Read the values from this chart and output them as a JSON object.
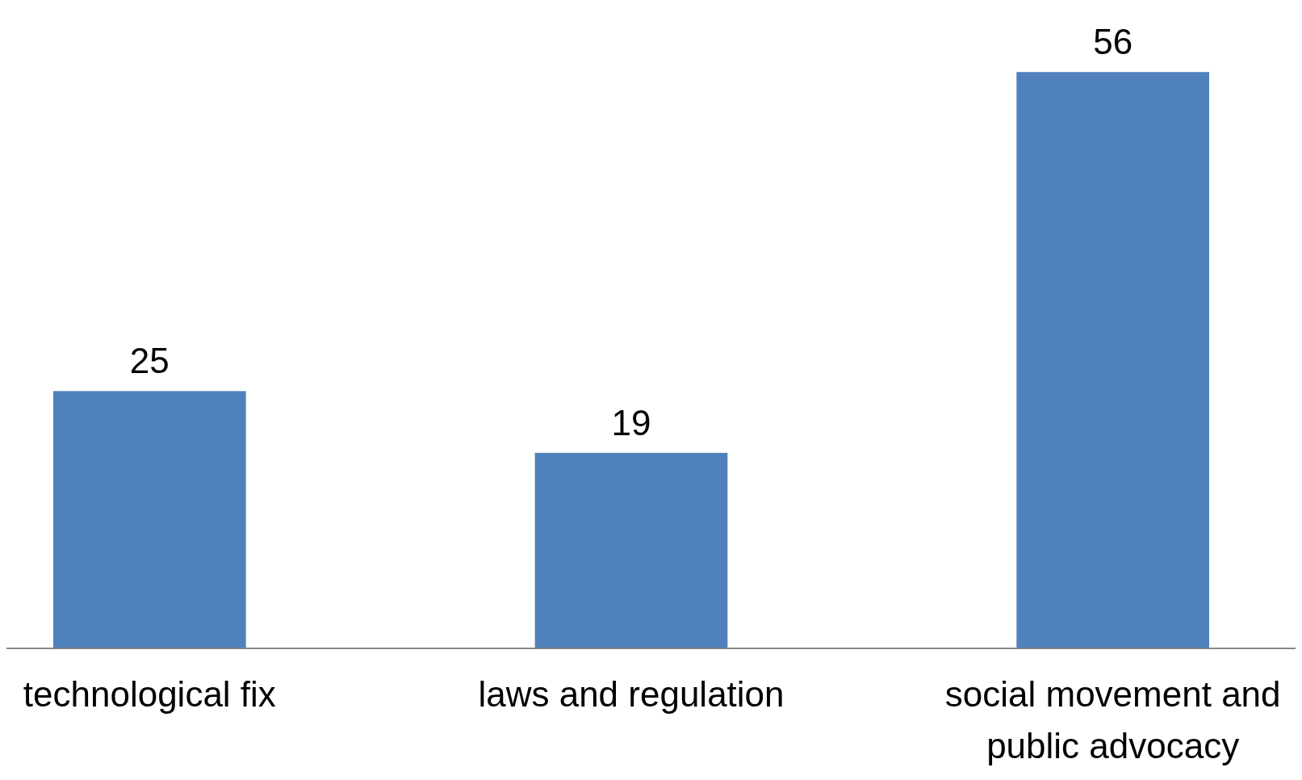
{
  "chart_data": {
    "type": "bar",
    "categories": [
      "technological fix",
      "laws and regulation",
      "social movement and public advocacy"
    ],
    "values": [
      25,
      19,
      56
    ],
    "color": "#4f81bd",
    "ylim": [
      0,
      63
    ],
    "data_labels": true
  }
}
